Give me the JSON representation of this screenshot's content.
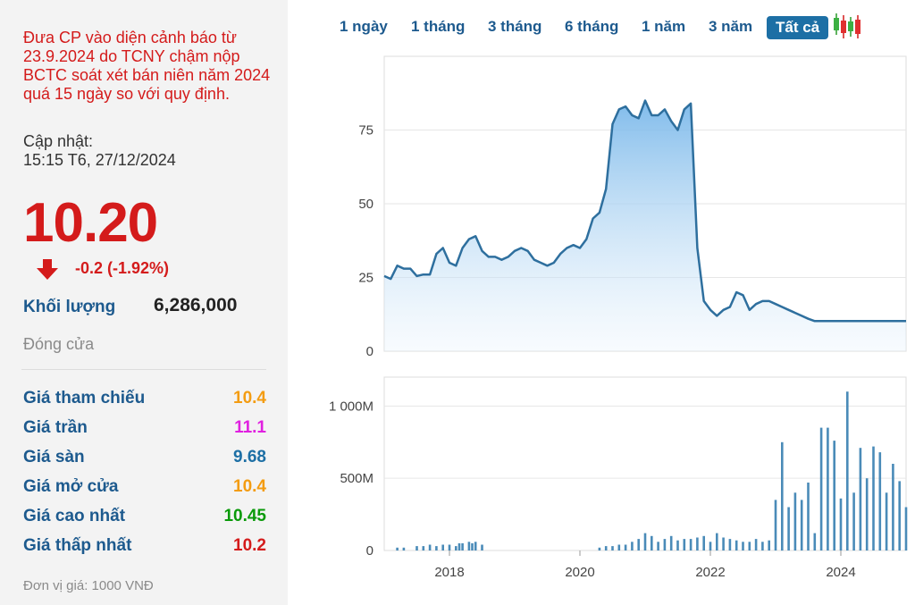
{
  "warning": "Đưa CP vào diện cảnh báo từ 23.9.2024 do TCNY chậm nộp BCTC soát xét bán niên năm 2024 quá 15 ngày so với quy định.",
  "update_label": "Cập nhật:",
  "update_time": "15:15 T6, 27/12/2024",
  "price": "10.20",
  "change": "-0.2 (-1.92%)",
  "volume_label": "Khối lượng",
  "volume_value": "6,286,000",
  "status": "Đóng cửa",
  "stats": [
    {
      "label": "Giá tham chiếu",
      "value": "10.4",
      "color": "#f39c12"
    },
    {
      "label": "Giá trần",
      "value": "11.1",
      "color": "#e020e0"
    },
    {
      "label": "Giá sàn",
      "value": "9.68",
      "color": "#1d6fa5"
    },
    {
      "label": "Giá mở cửa",
      "value": "10.4",
      "color": "#f39c12"
    },
    {
      "label": "Giá cao nhất",
      "value": "10.45",
      "color": "#0a9a0a"
    },
    {
      "label": "Giá thấp nhất",
      "value": "10.2",
      "color": "#d41b1b"
    }
  ],
  "unit_note": "Đơn vị giá: 1000 VNĐ",
  "tabs": [
    "1 ngày",
    "1 tháng",
    "3 tháng",
    "6 tháng",
    "1 năm",
    "3 năm",
    "Tất cả"
  ],
  "active_tab": "Tất cả",
  "colors": {
    "accent": "#1d6fa5",
    "down": "#d41b1b",
    "line": "#2e6f9e",
    "area_top": "#7ab8ea",
    "bar": "#4a8bb8"
  },
  "chart_data": [
    {
      "type": "area",
      "x": [
        2017.0,
        2017.1,
        2017.2,
        2017.3,
        2017.4,
        2017.5,
        2017.6,
        2017.7,
        2017.8,
        2017.9,
        2018.0,
        2018.1,
        2018.2,
        2018.3,
        2018.4,
        2018.5,
        2018.6,
        2018.7,
        2018.8,
        2018.9,
        2019.0,
        2019.1,
        2019.2,
        2019.3,
        2019.4,
        2019.5,
        2019.6,
        2019.7,
        2019.8,
        2019.9,
        2020.0,
        2020.1,
        2020.2,
        2020.3,
        2020.4,
        2020.5,
        2020.6,
        2020.7,
        2020.8,
        2020.9,
        2021.0,
        2021.1,
        2021.2,
        2021.3,
        2021.4,
        2021.5,
        2021.6,
        2021.7,
        2021.8,
        2021.9,
        2022.0,
        2022.1,
        2022.2,
        2022.3,
        2022.4,
        2022.5,
        2022.6,
        2022.7,
        2022.8,
        2022.9,
        2023.0,
        2023.1,
        2023.2,
        2023.3,
        2023.4,
        2023.5,
        2023.6,
        2023.7,
        2023.8,
        2023.9,
        2024.0,
        2024.1,
        2024.2,
        2024.3,
        2024.4,
        2024.5,
        2024.6,
        2024.7,
        2024.8,
        2024.9,
        2025.0
      ],
      "y": [
        25.5,
        24.5,
        29,
        28,
        28,
        25.5,
        26,
        26,
        33,
        35,
        30,
        29,
        35,
        38,
        39,
        34,
        32,
        32,
        31,
        32,
        34,
        35,
        34,
        31,
        30,
        29,
        30,
        33,
        35,
        36,
        35,
        38,
        45,
        47,
        55,
        77,
        82,
        83,
        80,
        79,
        85,
        80,
        80,
        82,
        78,
        75,
        82,
        84,
        35,
        17,
        14,
        12,
        14,
        15,
        20,
        19,
        14,
        16,
        17,
        17,
        16,
        15,
        14,
        13,
        12,
        11,
        10.2,
        10.2,
        10.2,
        10.2,
        10.2,
        10.2,
        10.2,
        10.2,
        10.2,
        10.2,
        10.2,
        10.2,
        10.2,
        10.2,
        10.2
      ],
      "ylim": [
        0,
        100
      ],
      "yticks": [
        0,
        25,
        50,
        75
      ],
      "grid": true
    },
    {
      "type": "bar",
      "x": [
        2017.2,
        2017.3,
        2017.5,
        2017.6,
        2017.7,
        2017.8,
        2017.9,
        2018.0,
        2018.1,
        2018.15,
        2018.2,
        2018.3,
        2018.35,
        2018.4,
        2018.5,
        2020.3,
        2020.4,
        2020.5,
        2020.6,
        2020.7,
        2020.8,
        2020.9,
        2021.0,
        2021.1,
        2021.2,
        2021.3,
        2021.4,
        2021.5,
        2021.6,
        2021.7,
        2021.8,
        2021.9,
        2022.0,
        2022.1,
        2022.2,
        2022.3,
        2022.4,
        2022.5,
        2022.6,
        2022.7,
        2022.8,
        2022.9,
        2023.0,
        2023.1,
        2023.2,
        2023.3,
        2023.4,
        2023.5,
        2023.6,
        2023.7,
        2023.8,
        2023.9,
        2024.0,
        2024.1,
        2024.2,
        2024.3,
        2024.4,
        2024.5,
        2024.6,
        2024.7,
        2024.8,
        2024.9,
        2025.0
      ],
      "values": [
        20,
        20,
        30,
        30,
        40,
        30,
        40,
        40,
        30,
        50,
        50,
        60,
        50,
        60,
        40,
        20,
        30,
        30,
        40,
        40,
        60,
        80,
        120,
        100,
        60,
        80,
        100,
        70,
        80,
        80,
        90,
        100,
        60,
        120,
        90,
        80,
        70,
        60,
        60,
        80,
        60,
        70,
        350,
        750,
        300,
        400,
        350,
        470,
        120,
        850,
        850,
        760,
        360,
        1100,
        400,
        710,
        500,
        720,
        680,
        400,
        600,
        480,
        300
      ],
      "ylim": [
        0,
        1200
      ],
      "yticks": [
        0,
        500,
        1000
      ],
      "ytick_labels": [
        "0",
        "500M",
        "1 000M"
      ],
      "xticks": [
        2018,
        2020,
        2022,
        2024
      ],
      "grid": true
    }
  ]
}
